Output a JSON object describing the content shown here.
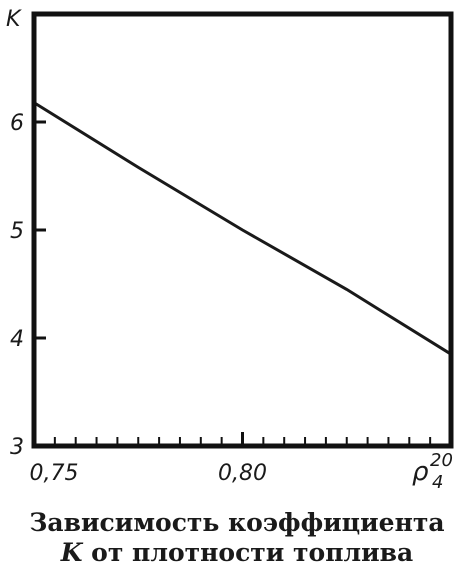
{
  "chart_data": {
    "type": "line",
    "ylabel": "K",
    "xlabel_main": "ρ",
    "xlabel_sub": "4",
    "xlabel_sup": "20",
    "xlim": [
      0.75,
      0.85
    ],
    "ylim": [
      3,
      7
    ],
    "x_ticks": [
      {
        "value": 0.75,
        "label": "0,75"
      },
      {
        "value": 0.8,
        "label": "0,80"
      }
    ],
    "y_ticks": [
      {
        "value": 3,
        "label": "3"
      },
      {
        "value": 4,
        "label": "4"
      },
      {
        "value": 5,
        "label": "5"
      },
      {
        "value": 6,
        "label": "6"
      }
    ],
    "minor_x_step": 0.005,
    "grid": false,
    "series": [
      {
        "x": [
          0.75,
          0.775,
          0.8,
          0.825,
          0.85
        ],
        "y": [
          6.18,
          5.58,
          5.0,
          4.45,
          3.85
        ]
      }
    ]
  },
  "caption": {
    "line1": "Зависимость коэффициента",
    "line2_var": "K",
    "line2_rest": " от плотности топлива"
  }
}
